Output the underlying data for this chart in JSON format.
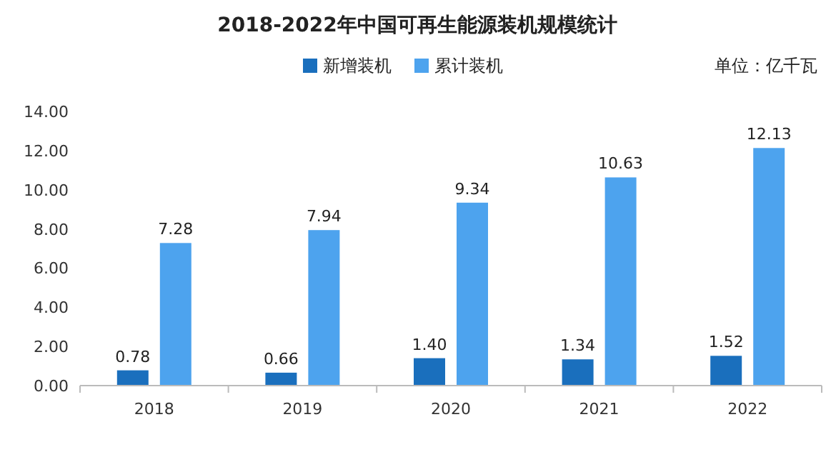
{
  "chart_data": {
    "type": "bar",
    "title": "2018-2022年中国可再生能源装机规模统计",
    "annotations": [
      "单位：亿千瓦"
    ],
    "categories": [
      "2018",
      "2019",
      "2020",
      "2021",
      "2022"
    ],
    "series": [
      {
        "name": "新增装机",
        "color": "#1a6fbd",
        "values": [
          0.78,
          0.66,
          1.4,
          1.34,
          1.52
        ],
        "value_labels": [
          "0.78",
          "0.66",
          "1.40",
          "1.34",
          "1.52"
        ]
      },
      {
        "name": "累计装机",
        "color": "#4da3ee",
        "values": [
          7.28,
          7.94,
          9.34,
          10.63,
          12.13
        ],
        "value_labels": [
          "7.28",
          "7.94",
          "9.34",
          "10.63",
          "12.13"
        ]
      }
    ],
    "ylim": [
      0,
      14
    ],
    "yticks": [
      {
        "value": 0,
        "label": "0.00"
      },
      {
        "value": 2,
        "label": "2.00"
      },
      {
        "value": 4,
        "label": "4.00"
      },
      {
        "value": 6,
        "label": "6.00"
      },
      {
        "value": 8,
        "label": "8.00"
      },
      {
        "value": 10,
        "label": "10.00"
      },
      {
        "value": 12,
        "label": "12.00"
      },
      {
        "value": 14,
        "label": "14.00"
      }
    ],
    "grid": false,
    "legend": "top"
  }
}
